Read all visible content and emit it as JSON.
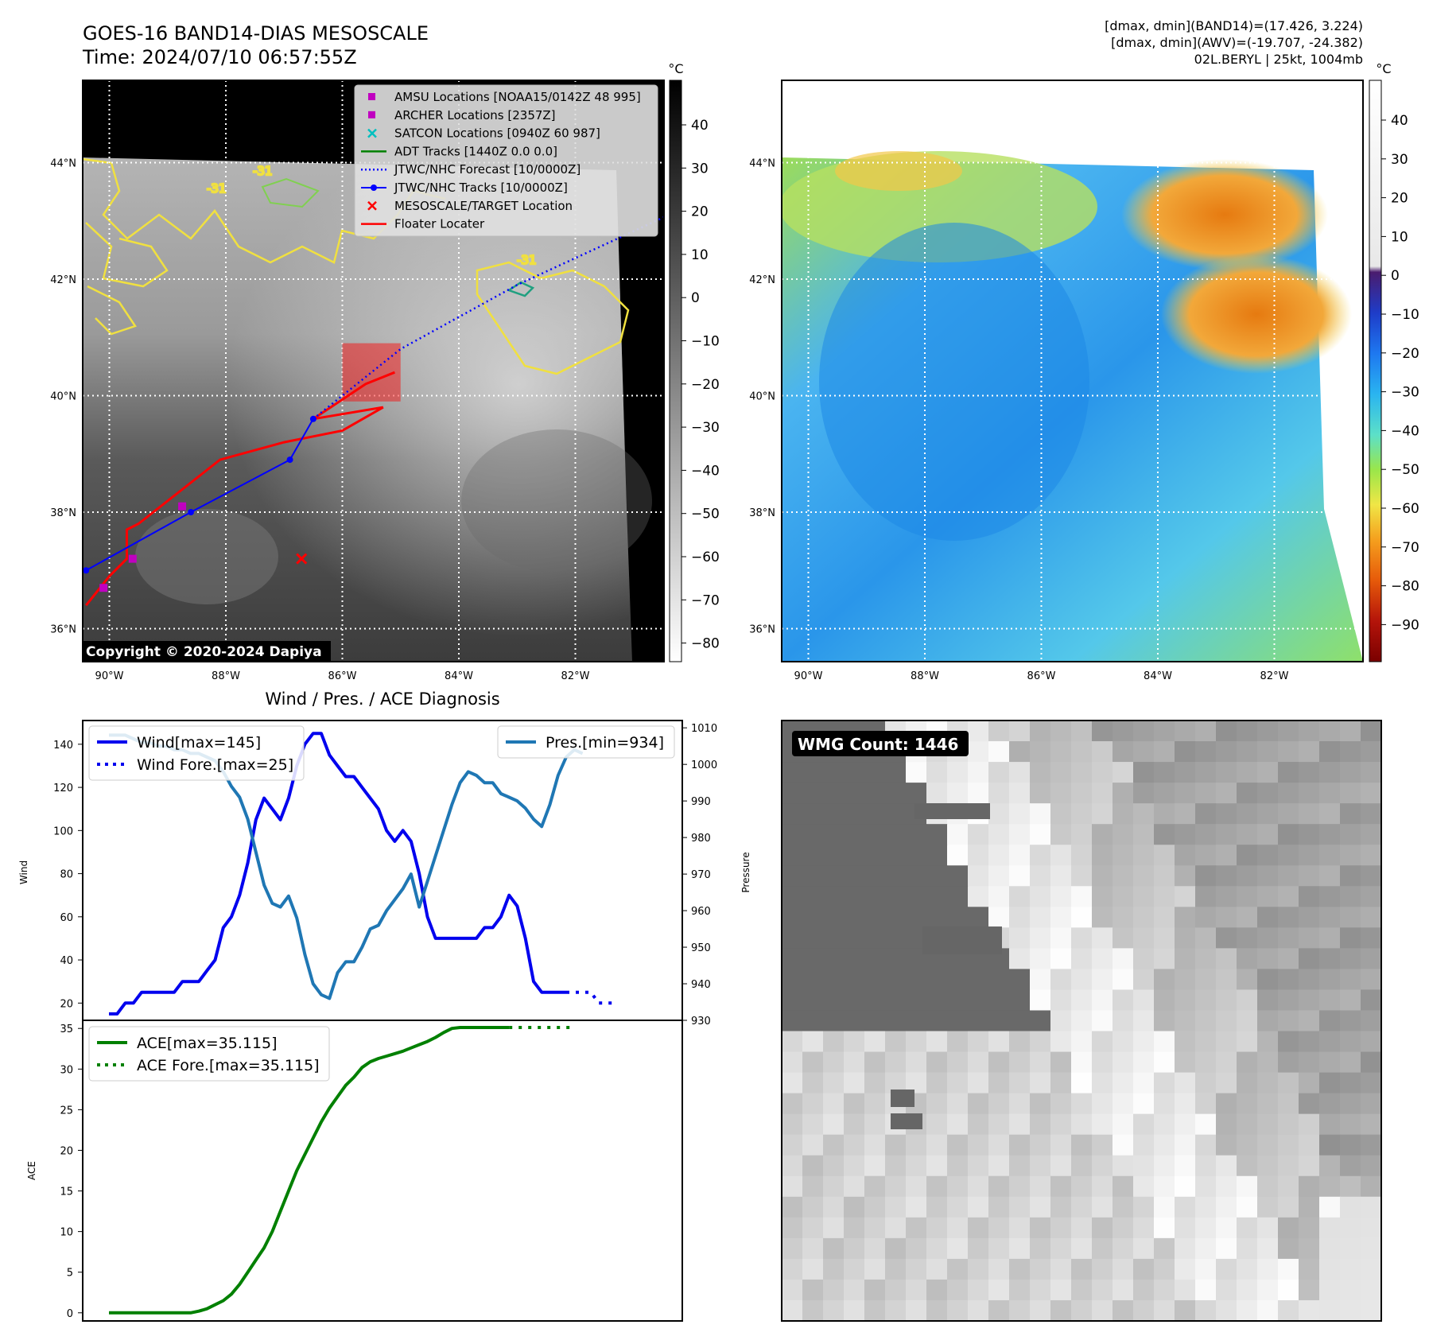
{
  "header": {
    "title_line1": "GOES-16 BAND14-DIAS MESOSCALE",
    "title_line2": "Time: 2024/07/10 06:57:55Z",
    "info_line1": "[dmax, dmin](BAND14)=(17.426, 3.224)",
    "info_line2": "[dmax, dmin](AWV)=(-19.707, -24.382)",
    "info_line3": "02L.BERYL | 25kt, 1004mb"
  },
  "map": {
    "lat_labels": [
      "44°N",
      "42°N",
      "40°N",
      "38°N",
      "36°N"
    ],
    "lon_labels": [
      "90°W",
      "88°W",
      "86°W",
      "84°W",
      "82°W"
    ],
    "copyright": "Copyright © 2020-2024 Dapiya",
    "contour_labels": [
      "-31",
      "-31",
      "-31"
    ],
    "legend": [
      {
        "label": "AMSU Locations [NOAA15/0142Z 48 995]",
        "color": "#c000c0",
        "kind": "square"
      },
      {
        "label": "ARCHER Locations [2357Z]",
        "color": "#c000c0",
        "kind": "square"
      },
      {
        "label": "SATCON Locations [0940Z 60 987]",
        "color": "#00bfbf",
        "kind": "x"
      },
      {
        "label": "ADT Tracks [1440Z 0.0 0.0]",
        "color": "#008000",
        "kind": "line"
      },
      {
        "label": "JTWC/NHC Forecast [10/0000Z]",
        "color": "#0000ff",
        "kind": "dotted"
      },
      {
        "label": "JTWC/NHC Tracks [10/0000Z]",
        "color": "#0000ff",
        "kind": "linedot"
      },
      {
        "label": "MESOSCALE/TARGET Location",
        "color": "#ff0000",
        "kind": "x"
      },
      {
        "label": "Floater Locater",
        "color": "#ff0000",
        "kind": "line"
      }
    ],
    "tracks": {
      "jtwc_track": [
        [
          -90.4,
          37.0
        ],
        [
          -88.6,
          38.0
        ],
        [
          -86.9,
          38.9
        ],
        [
          -86.5,
          39.6
        ]
      ],
      "jtwc_forecast": [
        [
          -86.5,
          39.6
        ],
        [
          -85.0,
          40.8
        ],
        [
          -83.0,
          41.9
        ],
        [
          -80.4,
          43.1
        ]
      ],
      "floater": [
        [
          -90.4,
          36.4
        ],
        [
          -90.0,
          36.9
        ],
        [
          -89.7,
          37.2
        ],
        [
          -89.7,
          37.7
        ],
        [
          -89.5,
          37.8
        ],
        [
          -88.1,
          38.9
        ],
        [
          -87.0,
          39.2
        ],
        [
          -86.0,
          39.4
        ],
        [
          -85.3,
          39.8
        ],
        [
          -86.5,
          39.6
        ],
        [
          -85.6,
          40.2
        ],
        [
          -85.1,
          40.4
        ]
      ],
      "amsu": [
        [
          -90.1,
          36.7
        ],
        [
          -89.6,
          37.2
        ]
      ],
      "archer": [
        [
          -88.75,
          38.1
        ]
      ],
      "target": [
        [
          -86.7,
          37.2
        ]
      ]
    },
    "floater_box": {
      "lon_min": -86.0,
      "lon_max": -85.0,
      "lat_min": 39.9,
      "lat_max": 40.9
    }
  },
  "colorbar_band14": {
    "unit": "°C",
    "ticks": [
      "40",
      "30",
      "20",
      "10",
      "0",
      "−10",
      "−20",
      "−30",
      "−40",
      "−50",
      "−60",
      "−70",
      "−80"
    ]
  },
  "colorbar_awv": {
    "unit": "°C",
    "ticks": [
      "40",
      "30",
      "20",
      "10",
      "0",
      "−10",
      "−20",
      "−30",
      "−40",
      "−50",
      "−60",
      "−70",
      "−80",
      "−90"
    ]
  },
  "wmg": {
    "label": "WMG Count: 1446"
  },
  "diagnosis": {
    "title": "Wind / Pres. / ACE Diagnosis"
  },
  "chart_data": [
    {
      "type": "line",
      "title": "Wind / Pres. / ACE Diagnosis",
      "ylabel": "Wind",
      "y2label": "Pressure",
      "ylim": [
        12,
        151
      ],
      "y2lim": [
        930,
        1012
      ],
      "yticks": [
        20,
        40,
        60,
        80,
        100,
        120,
        140
      ],
      "y2ticks": [
        930,
        940,
        950,
        960,
        970,
        980,
        990,
        1000,
        1010
      ],
      "series": [
        {
          "name": "Wind[max=145]",
          "axis": "left",
          "style": "solid",
          "color": "#0000ee",
          "values": [
            [
              0,
              15
            ],
            [
              1,
              15
            ],
            [
              2,
              20
            ],
            [
              3,
              20
            ],
            [
              4,
              25
            ],
            [
              5,
              25
            ],
            [
              6,
              25
            ],
            [
              7,
              25
            ],
            [
              8,
              25
            ],
            [
              9,
              30
            ],
            [
              10,
              30
            ],
            [
              11,
              30
            ],
            [
              12,
              35
            ],
            [
              13,
              40
            ],
            [
              14,
              55
            ],
            [
              15,
              60
            ],
            [
              16,
              70
            ],
            [
              17,
              85
            ],
            [
              18,
              105
            ],
            [
              19,
              115
            ],
            [
              20,
              110
            ],
            [
              21,
              105
            ],
            [
              22,
              115
            ],
            [
              23,
              130
            ],
            [
              24,
              140
            ],
            [
              25,
              145
            ],
            [
              26,
              145
            ],
            [
              27,
              135
            ],
            [
              28,
              130
            ],
            [
              29,
              125
            ],
            [
              30,
              125
            ],
            [
              31,
              120
            ],
            [
              32,
              115
            ],
            [
              33,
              110
            ],
            [
              34,
              100
            ],
            [
              35,
              95
            ],
            [
              36,
              100
            ],
            [
              37,
              95
            ],
            [
              38,
              80
            ],
            [
              39,
              60
            ],
            [
              40,
              50
            ],
            [
              41,
              50
            ],
            [
              42,
              50
            ],
            [
              43,
              50
            ],
            [
              44,
              50
            ],
            [
              45,
              50
            ],
            [
              46,
              55
            ],
            [
              47,
              55
            ],
            [
              48,
              60
            ],
            [
              49,
              70
            ],
            [
              50,
              65
            ],
            [
              51,
              50
            ],
            [
              52,
              30
            ],
            [
              53,
              25
            ],
            [
              54,
              25
            ],
            [
              55,
              25
            ],
            [
              56,
              25
            ]
          ]
        },
        {
          "name": "Wind Fore.[max=25]",
          "axis": "left",
          "style": "dotted",
          "color": "#0000ee",
          "values": [
            [
              56,
              25
            ],
            [
              57,
              25
            ],
            [
              58,
              25
            ],
            [
              59,
              25
            ],
            [
              60,
              20
            ],
            [
              61,
              20
            ],
            [
              62,
              20
            ]
          ]
        },
        {
          "name": "Pres.[min=934]",
          "axis": "right",
          "style": "solid",
          "color": "#1f77b4",
          "values": [
            [
              0,
              1008
            ],
            [
              1,
              1008
            ],
            [
              2,
              1008
            ],
            [
              3,
              1007
            ],
            [
              4,
              1006
            ],
            [
              5,
              1006
            ],
            [
              6,
              1005
            ],
            [
              7,
              1005
            ],
            [
              8,
              1004
            ],
            [
              9,
              1004
            ],
            [
              10,
              1003
            ],
            [
              11,
              1003
            ],
            [
              12,
              1002
            ],
            [
              13,
              1001
            ],
            [
              14,
              998
            ],
            [
              15,
              994
            ],
            [
              16,
              991
            ],
            [
              17,
              985
            ],
            [
              18,
              976
            ],
            [
              19,
              967
            ],
            [
              20,
              962
            ],
            [
              21,
              961
            ],
            [
              22,
              964
            ],
            [
              23,
              958
            ],
            [
              24,
              948
            ],
            [
              25,
              940
            ],
            [
              26,
              937
            ],
            [
              27,
              936
            ],
            [
              28,
              943
            ],
            [
              29,
              946
            ],
            [
              30,
              946
            ],
            [
              31,
              950
            ],
            [
              32,
              955
            ],
            [
              33,
              956
            ],
            [
              34,
              960
            ],
            [
              35,
              963
            ],
            [
              36,
              966
            ],
            [
              37,
              970
            ],
            [
              38,
              961
            ],
            [
              39,
              968
            ],
            [
              40,
              975
            ],
            [
              41,
              982
            ],
            [
              42,
              989
            ],
            [
              43,
              995
            ],
            [
              44,
              998
            ],
            [
              45,
              997
            ],
            [
              46,
              995
            ],
            [
              47,
              995
            ],
            [
              48,
              992
            ],
            [
              49,
              991
            ],
            [
              50,
              990
            ],
            [
              51,
              988
            ],
            [
              52,
              985
            ],
            [
              53,
              983
            ],
            [
              54,
              989
            ],
            [
              55,
              997
            ],
            [
              56,
              1002
            ],
            [
              57,
              1004
            ],
            [
              58,
              1003
            ]
          ]
        }
      ]
    },
    {
      "type": "line",
      "ylabel": "ACE",
      "ylim": [
        -1,
        36
      ],
      "yticks": [
        0,
        5,
        10,
        15,
        20,
        25,
        30,
        35
      ],
      "series": [
        {
          "name": "ACE[max=35.115]",
          "style": "solid",
          "color": "#008000",
          "values": [
            [
              0,
              0
            ],
            [
              10,
              0
            ],
            [
              11,
              0.2
            ],
            [
              12,
              0.5
            ],
            [
              13,
              1
            ],
            [
              14,
              1.5
            ],
            [
              15,
              2.3
            ],
            [
              16,
              3.5
            ],
            [
              17,
              5
            ],
            [
              18,
              6.5
            ],
            [
              19,
              8
            ],
            [
              20,
              10
            ],
            [
              21,
              12.5
            ],
            [
              22,
              15
            ],
            [
              23,
              17.5
            ],
            [
              24,
              19.5
            ],
            [
              25,
              21.5
            ],
            [
              26,
              23.5
            ],
            [
              27,
              25.2
            ],
            [
              28,
              26.6
            ],
            [
              29,
              28
            ],
            [
              30,
              29
            ],
            [
              31,
              30.2
            ],
            [
              32,
              30.9
            ],
            [
              33,
              31.3
            ],
            [
              34,
              31.6
            ],
            [
              35,
              31.9
            ],
            [
              36,
              32.2
            ],
            [
              37,
              32.6
            ],
            [
              38,
              33
            ],
            [
              39,
              33.4
            ],
            [
              40,
              33.9
            ],
            [
              41,
              34.5
            ],
            [
              42,
              35.0
            ],
            [
              43,
              35.115
            ],
            [
              49,
              35.115
            ]
          ]
        },
        {
          "name": "ACE Fore.[max=35.115]",
          "style": "dotted",
          "color": "#008000",
          "values": [
            [
              49,
              35.115
            ],
            [
              57,
              35.115
            ]
          ]
        }
      ]
    }
  ]
}
